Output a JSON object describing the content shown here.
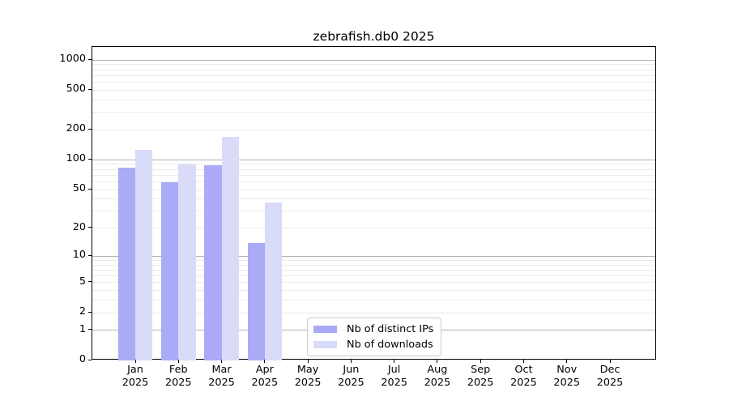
{
  "title": "zebrafish.db0 2025",
  "x_year": "2025",
  "chart_data": {
    "type": "bar",
    "title": "zebrafish.db0 2025",
    "categories": [
      "Jan",
      "Feb",
      "Mar",
      "Apr",
      "May",
      "Jun",
      "Jul",
      "Aug",
      "Sep",
      "Oct",
      "Nov",
      "Dec"
    ],
    "x_year": "2025",
    "series": [
      {
        "name": "Nb of distinct IPs",
        "color": "#aaaaf7",
        "values": [
          83,
          59,
          88,
          14,
          0,
          0,
          0,
          0,
          0,
          0,
          0,
          0
        ]
      },
      {
        "name": "Nb of downloads",
        "color": "#dadaf9",
        "values": [
          127,
          90,
          170,
          37,
          0,
          0,
          0,
          0,
          0,
          0,
          0,
          0
        ]
      }
    ],
    "yscale": "log1p",
    "yticks": [
      0,
      1,
      2,
      5,
      10,
      20,
      50,
      100,
      200,
      500,
      1000
    ],
    "major_gridlines": [
      1,
      10,
      100,
      1000
    ],
    "ylim": [
      0,
      1356
    ],
    "grid": "on",
    "legend_position": "bottom-center",
    "colors": {
      "major_grid": "#b2b2b2",
      "minor_grid": "#ebebeb",
      "spine": "#000000",
      "background": "#ffffff"
    }
  }
}
